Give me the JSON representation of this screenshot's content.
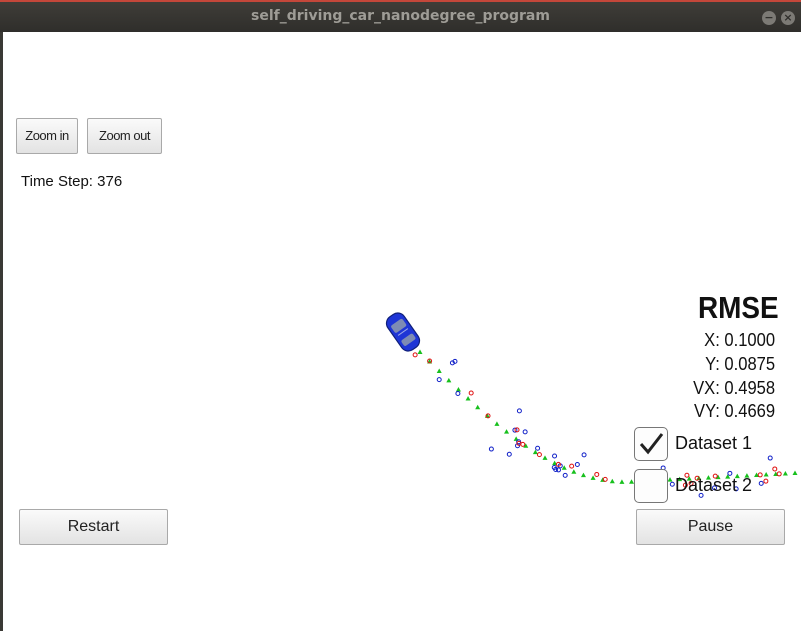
{
  "window": {
    "title": "self_driving_car_nanodegree_program",
    "minimize_glyph": "−",
    "close_glyph": "×"
  },
  "toolbar": {
    "zoom_in_label": "Zoom in",
    "zoom_out_label": "Zoom out"
  },
  "status": {
    "time_step_label": "Time Step: 376"
  },
  "rmse": {
    "title": "RMSE",
    "x": "X: 0.1000",
    "y": "Y: 0.0875",
    "vx": "VX: 0.4958",
    "vy": "VY: 0.4669"
  },
  "datasets": [
    {
      "label": "Dataset 1",
      "checked": true
    },
    {
      "label": "Dataset 2",
      "checked": false
    }
  ],
  "controls": {
    "restart_label": "Restart",
    "pause_label": "Pause"
  },
  "colors": {
    "lidar": "#e01010",
    "radar": "#1020c8",
    "estimate": "#17c01d",
    "car": "#2233cc"
  },
  "icons": {
    "car": "car-icon",
    "checkmark": "checkmark-icon"
  }
}
